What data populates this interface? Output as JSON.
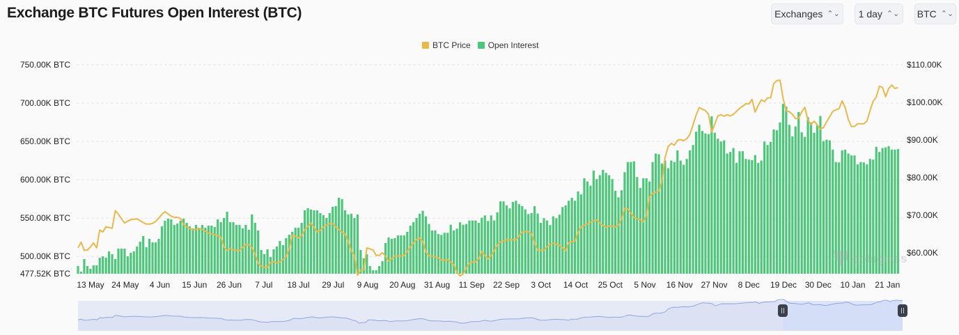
{
  "header": {
    "title": "Exchange BTC Futures Open Interest (BTC)"
  },
  "controls": [
    {
      "label": "Exchanges",
      "icon": "chevron-up-down-icon"
    },
    {
      "label": "1 day",
      "icon": "chevron-up-down-icon"
    },
    {
      "label": "BTC",
      "icon": "chevron-up-down-icon"
    }
  ],
  "watermark": "coinglass",
  "colors": {
    "price": "#e8b84a",
    "open_interest": "#4cc77a",
    "navigator_line": "#8fa6dc",
    "navigator_fill": "#e6eaf6",
    "navigator_selected": "#dce3fb"
  },
  "chart_data": {
    "type": "bar+line",
    "title": "Exchange BTC Futures Open Interest (BTC)",
    "legend": [
      "BTC Price",
      "Open Interest"
    ],
    "legend_position": "top-center",
    "grid": true,
    "x_tick_labels": [
      "13 May",
      "24 May",
      "4 Jun",
      "15 Jun",
      "26 Jun",
      "7 Jul",
      "18 Jul",
      "29 Jul",
      "9 Aug",
      "20 Aug",
      "31 Aug",
      "11 Sep",
      "22 Sep",
      "3 Oct",
      "14 Oct",
      "25 Oct",
      "5 Nov",
      "16 Nov",
      "27 Nov",
      "8 Dec",
      "19 Dec",
      "30 Dec",
      "10 Jan",
      "21 Jan"
    ],
    "y_left": {
      "unit": "K BTC",
      "ylim": [
        477.52,
        750
      ],
      "tick_labels": [
        "750.00K BTC",
        "700.00K BTC",
        "650.00K BTC",
        "600.00K BTC",
        "550.00K BTC",
        "500.00K BTC",
        "477.52K BTC"
      ],
      "tick_values": [
        750,
        700,
        650,
        600,
        550,
        500,
        477.52
      ]
    },
    "y_right": {
      "unit": "$K",
      "ylim": [
        54.4,
        110
      ],
      "tick_labels": [
        "$110.00K",
        "$100.00K",
        "$90.00K",
        "$80.00K",
        "$70.00K",
        "$60.00K"
      ],
      "tick_values": [
        110,
        100,
        90,
        80,
        70,
        60
      ]
    },
    "series": [
      {
        "name": "Open Interest",
        "type": "bar",
        "axis": "left",
        "values": [
          487.5,
          480.2,
          496.6,
          487.5,
          483.9,
          488.4,
          488.4,
          498.4,
          500.2,
          498.4,
          506.6,
          503,
          496.6,
          510.2,
          510.2,
          510.2,
          500.2,
          504.8,
          506.6,
          513,
          519.3,
          526.6,
          512,
          523,
          518.4,
          518.4,
          523,
          539.3,
          546.6,
          549.3,
          548.4,
          541.2,
          543,
          546.6,
          549.3,
          543.9,
          539.3,
          536.6,
          541.2,
          537.5,
          541.2,
          537.5,
          540.2,
          540.2,
          538.4,
          548.4,
          544.8,
          550.2,
          558.4,
          544.8,
          544.8,
          541.2,
          541.2,
          536.6,
          541.2,
          534.8,
          554.8,
          543.9,
          533.9,
          508.4,
          503,
          509.3,
          499.3,
          509.3,
          513,
          520.3,
          514.8,
          523.9,
          528.4,
          532.1,
          537.5,
          537.5,
          543.9,
          560.2,
          563,
          561.2,
          560.2,
          560.2,
          556.6,
          553.9,
          550.2,
          556.6,
          564.8,
          565.7,
          576.6,
          574.8,
          560.2,
          554.8,
          555.7,
          550.2,
          554.8,
          508.4,
          497.5,
          503,
          487.5,
          482,
          482,
          487.5,
          493.9,
          517.5,
          524.8,
          523,
          523.9,
          527.5,
          527.5,
          527.5,
          532.1,
          540.2,
          544.8,
          550.2,
          555.7,
          559.6,
          552.3,
          542.3,
          533.9,
          533.9,
          529.3,
          528.1,
          530.9,
          530.9,
          541.4,
          533.9,
          536.3,
          544.5,
          541.4,
          542.3,
          546.9,
          546.9,
          546.9,
          543.9,
          550.5,
          553.6,
          546.3,
          553.6,
          546.9,
          557.5,
          571.8,
          571.8,
          566.6,
          562.7,
          571.2,
          572.7,
          568.2,
          565.7,
          561.4,
          555.4,
          556.6,
          565.7,
          555.9,
          543.9,
          549.9,
          546.9,
          540.9,
          552.3,
          549.9,
          554.5,
          564.5,
          566.6,
          572.7,
          576.6,
          572.7,
          584.8,
          580.9,
          602,
          597.8,
          592.3,
          612,
          600.9,
          606,
          613,
          609,
          606,
          600.9,
          585.7,
          577.2,
          586.3,
          609.9,
          623.2,
          623.2,
          624.1,
          603.6,
          589.3,
          602,
          602,
          597.8,
          623.2,
          634.2,
          633.3,
          621.2,
          625.1,
          615.1,
          625.1,
          623.2,
          638.4,
          625.1,
          619.6,
          627.2,
          638.4,
          645.4,
          662.7,
          671.7,
          663.6,
          660.5,
          659.6,
          682.7,
          661.4,
          653.6,
          649.9,
          651.4,
          634.2,
          636.3,
          641.4,
          622.1,
          637.2,
          637.2,
          627.2,
          626.3,
          625.7,
          632.3,
          622.1,
          625.1,
          649.9,
          645.4,
          649.3,
          665.7,
          664.5,
          674.8,
          699,
          695.4,
          671.7,
          656.6,
          669.6,
          688.4,
          662,
          656,
          681.8,
          674.8,
          661.4,
          671.2,
          683.3,
          650.5,
          652.3,
          651.4,
          639.3,
          623.2,
          622.7,
          638.4,
          639.3,
          634.2,
          631.8,
          631.8,
          620.2,
          623.2,
          622.7,
          620.2,
          627.2,
          626.3,
          643,
          636.3,
          641.4,
          642.3,
          643.9,
          639.3,
          639.3,
          640
        ]
      },
      {
        "name": "BTC Price",
        "type": "line",
        "axis": "right",
        "values": [
          61.3,
          62.8,
          60.6,
          60.7,
          61.5,
          62.6,
          61.3,
          66,
          65.5,
          66.9,
          66.7,
          66.5,
          71.2,
          70.2,
          69,
          67.9,
          68.4,
          68.8,
          68.9,
          69,
          68.5,
          68,
          67.6,
          67.6,
          67.8,
          68.3,
          69.2,
          70.2,
          70.9,
          70.3,
          69.7,
          69.4,
          69.4,
          69.1,
          67.5,
          66.8,
          66.4,
          66.1,
          66.2,
          66.4,
          66.2,
          65.7,
          65.2,
          65,
          64.8,
          64.5,
          64.1,
          61.5,
          60.6,
          61,
          60.8,
          60.6,
          60.5,
          61.4,
          62.2,
          62.1,
          61.3,
          59.7,
          57.2,
          56.4,
          56.1,
          56.1,
          57.4,
          57.6,
          57.3,
          57.5,
          58.1,
          59,
          61,
          64.6,
          64.4,
          63.9,
          64.6,
          66.1,
          67,
          67.9,
          66.7,
          65.5,
          65.9,
          66.8,
          67.4,
          67.7,
          67.7,
          66.9,
          66.1,
          65.4,
          65,
          63,
          60.5,
          59.2,
          54,
          55.4,
          55.4,
          61.3,
          61,
          60.7,
          59.3,
          59.3,
          60,
          59.1,
          57.7,
          58.4,
          59.1,
          59.1,
          59.1,
          59.2,
          60.3,
          61.5,
          62.6,
          63.5,
          63.9,
          62.9,
          60.2,
          59.1,
          59.1,
          58.9,
          58.6,
          58,
          58,
          58.1,
          57.5,
          56.8,
          54.8,
          53.8,
          54.3,
          55.8,
          57.2,
          57.5,
          57.5,
          58.5,
          60.3,
          59.3,
          58.3,
          59.2,
          60.5,
          62,
          62.9,
          63.1,
          63.4,
          63.4,
          63.4,
          63.4,
          64.4,
          65.5,
          65.6,
          65.6,
          65,
          62.5,
          60.6,
          60.6,
          60.6,
          61.6,
          62.2,
          62.5,
          62.2,
          62,
          61.3,
          60.5,
          62.7,
          62.9,
          63.1,
          65.4,
          66.9,
          67.3,
          67.6,
          68.1,
          68.5,
          68.7,
          67.9,
          67.2,
          66.8,
          67.1,
          67.1,
          66.8,
          67.3,
          69,
          71.8,
          71.6,
          70.5,
          69.4,
          69,
          68.8,
          68.2,
          69.9,
          74.8,
          75.8,
          76.1,
          76.4,
          79,
          85.3,
          88.2,
          89.1,
          88.6,
          89.9,
          90.1,
          89.8,
          90.3,
          91.5,
          94,
          96.6,
          98.6,
          98.2,
          97.8,
          96.8,
          92.1,
          94.2,
          96.4,
          96.7,
          96.3,
          96.7,
          96.4,
          96.8,
          97.6,
          98.4,
          99,
          99.6,
          99.6,
          100.8,
          97.4,
          99.2,
          100.7,
          100.2,
          101.2,
          101.2,
          105,
          105.8,
          105.9,
          101.1,
          97.7,
          97.5,
          96.8,
          95.7,
          95.7,
          97.5,
          98.7,
          95.3,
          94.1,
          95,
          94,
          92.9,
          93.3,
          94.8,
          96.2,
          97.6,
          98,
          98.3,
          100.4,
          98.6,
          95.4,
          93.6,
          93.6,
          94.3,
          94.3,
          94.3,
          95,
          97.8,
          100.3,
          101.4,
          104.3,
          104,
          101.5,
          103.7,
          104.6,
          103.7,
          103.9
        ]
      }
    ]
  }
}
